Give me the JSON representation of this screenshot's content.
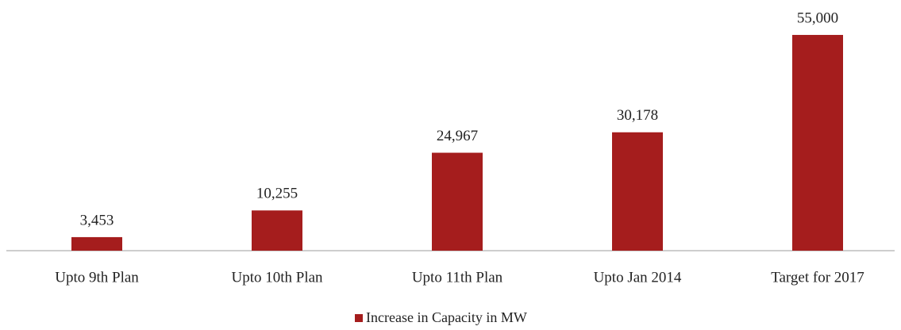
{
  "chart_data": {
    "type": "bar",
    "categories": [
      "Upto 9th Plan",
      "Upto 10th Plan",
      "Upto 11th Plan",
      "Upto Jan 2014",
      "Target for 2017"
    ],
    "series": [
      {
        "name": "Increase in Capacity in MW",
        "color": "#a51d1d",
        "values": [
          3453,
          10255,
          24967,
          30178,
          55000
        ],
        "value_labels": [
          "3,453",
          "10,255",
          "24,967",
          "30,178",
          "55,000"
        ]
      }
    ],
    "ylim": [
      0,
      60000
    ],
    "legend": "bottom"
  }
}
